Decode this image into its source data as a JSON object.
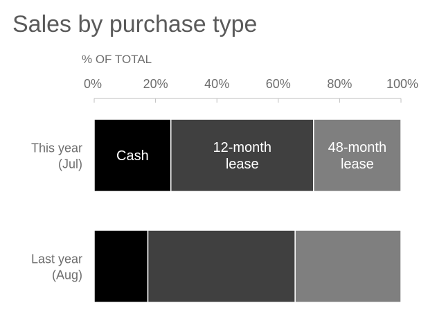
{
  "chart_data": {
    "type": "bar",
    "orientation": "horizontal",
    "stacked": true,
    "title": "Sales by purchase type",
    "xlabel": "% OF TOTAL",
    "xlim": [
      0,
      100
    ],
    "x_ticks": [
      "0%",
      "20%",
      "40%",
      "60%",
      "80%",
      "100%"
    ],
    "categories": [
      "This year (Jul)",
      "Last year (Aug)"
    ],
    "category_lines": [
      [
        "This year",
        "(Jul)"
      ],
      [
        "Last year",
        "(Aug)"
      ]
    ],
    "series": [
      {
        "name": "Cash",
        "label_lines": [
          "Cash"
        ],
        "color": "#000000",
        "values": [
          25,
          17.5
        ]
      },
      {
        "name": "12-month lease",
        "label_lines": [
          "12-month",
          "lease"
        ],
        "color": "#404040",
        "values": [
          46.5,
          48
        ]
      },
      {
        "name": "48-month lease",
        "label_lines": [
          "48-month",
          "lease"
        ],
        "color": "#7f7f7f",
        "values": [
          28.5,
          34.5
        ]
      }
    ],
    "segment_labels_on_category": 0,
    "legend": "none",
    "grid": false
  }
}
